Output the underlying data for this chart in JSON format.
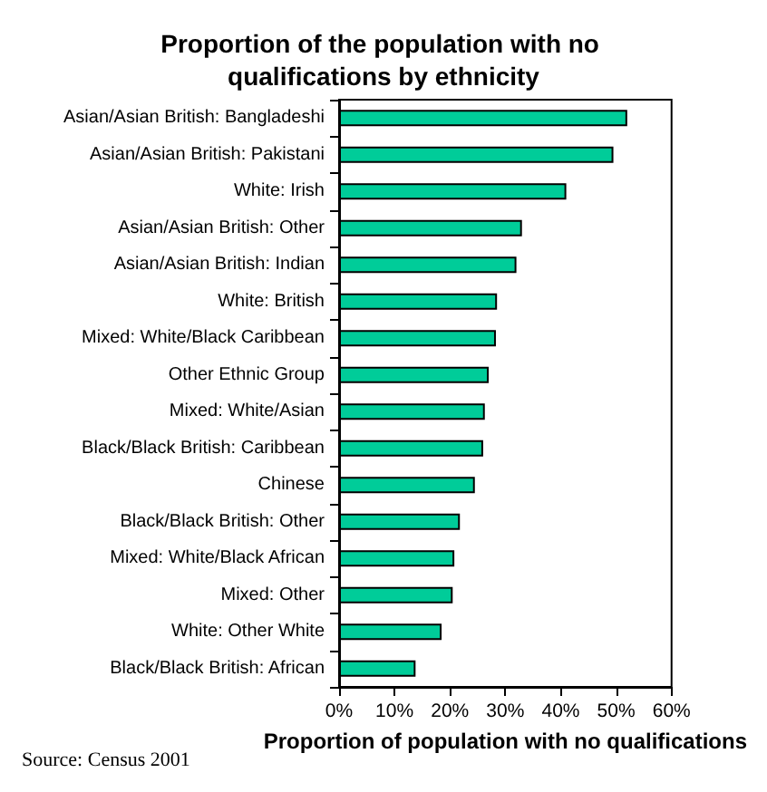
{
  "chart_data": {
    "type": "bar",
    "orientation": "horizontal",
    "title": "Proportion of the population with no qualifications by ethnicity",
    "xlabel": "Proportion of population with no qualifications",
    "categories": [
      "Asian/Asian British: Bangladeshi",
      "Asian/Asian British: Pakistani",
      "White: Irish",
      "Asian/Asian British: Other",
      "Asian/Asian British: Indian",
      "White: British",
      "Mixed: White/Black Caribbean",
      "Other Ethnic Group",
      "Mixed: White/Asian",
      "Black/Black British: Caribbean",
      "Chinese",
      "Black/Black British: Other",
      "Mixed: White/Black African",
      "Mixed: Other",
      "White: Other White",
      "Black/Black British: African"
    ],
    "values": [
      52,
      49.5,
      41,
      33,
      32,
      28.5,
      28.3,
      27,
      26.3,
      26,
      24.5,
      21.8,
      20.8,
      20.5,
      18.5,
      13.8
    ],
    "color": "#00cc99",
    "xlim": [
      0,
      60
    ],
    "xticks": [
      {
        "value": 0,
        "label": "0%"
      },
      {
        "value": 10,
        "label": "10%"
      },
      {
        "value": 20,
        "label": "20%"
      },
      {
        "value": 30,
        "label": "30%"
      },
      {
        "value": 40,
        "label": "40%"
      },
      {
        "value": 50,
        "label": "50%"
      },
      {
        "value": 60,
        "label": "60%"
      }
    ],
    "grid": false,
    "annotations": [
      "Source: Census 2001"
    ]
  }
}
